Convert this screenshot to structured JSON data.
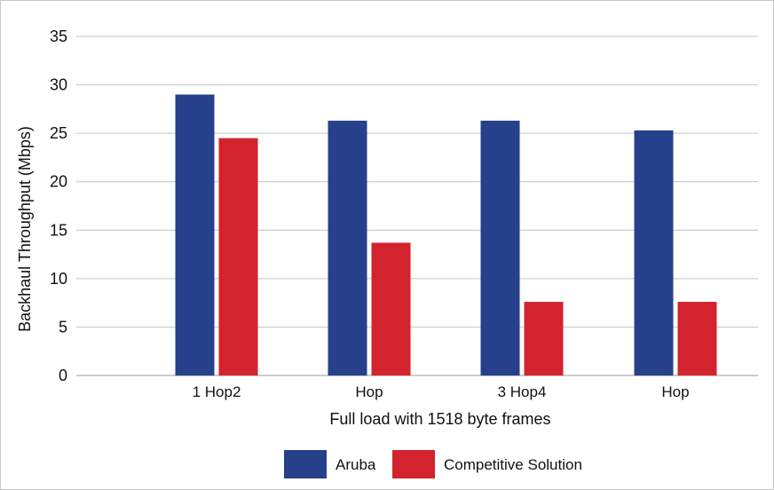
{
  "chart_data": {
    "type": "bar",
    "categories": [
      "1 Hop2",
      "Hop",
      "3 Hop4",
      "Hop"
    ],
    "series": [
      {
        "name": "Aruba",
        "color": "#27408b",
        "values": [
          29,
          26.3,
          26.3,
          25.3
        ]
      },
      {
        "name": "Competitive Solution",
        "color": "#d3232e",
        "values": [
          24.5,
          13.7,
          7.6,
          7.6
        ]
      }
    ],
    "xlabel": "Full load with 1518 byte frames",
    "ylabel": "Backhaul Throughput (Mbps)",
    "ylim": [
      0,
      35
    ],
    "yticks": [
      0,
      5,
      10,
      15,
      20,
      25,
      30,
      35
    ],
    "grid": true,
    "legend": "bottom-center"
  }
}
